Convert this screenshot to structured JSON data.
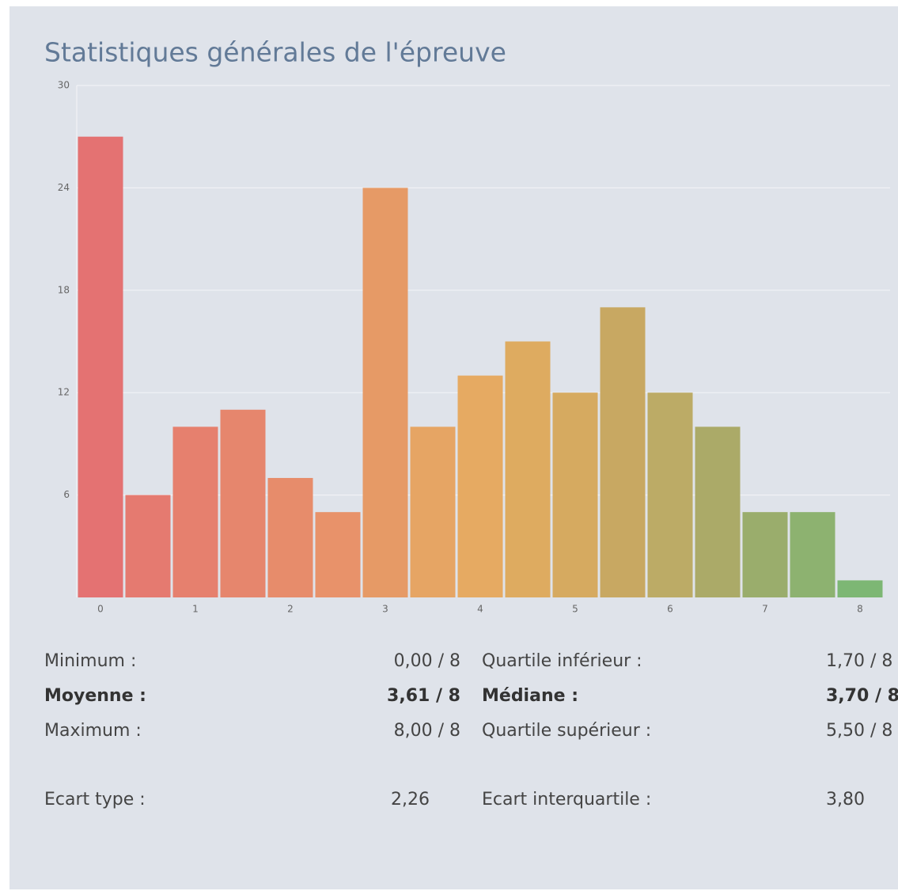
{
  "chart_data": {
    "type": "histogram",
    "title": "Statistiques générales de l'épreuve",
    "bins": [
      -0.25,
      0.25,
      0.75,
      1.25,
      1.75,
      2.25,
      2.75,
      3.25,
      3.75,
      4.25,
      4.75,
      5.25,
      5.75,
      6.25,
      6.75,
      7.25,
      7.75,
      8.25
    ],
    "values": [
      27,
      6,
      10,
      11,
      7,
      5,
      24,
      10,
      13,
      15,
      12,
      17,
      12,
      10,
      5,
      5,
      1
    ],
    "colors": [
      "#e47272",
      "#e57a70",
      "#e6806e",
      "#e6866d",
      "#e78c6b",
      "#e8926a",
      "#e69a66",
      "#e6a564",
      "#e6aa62",
      "#deab60",
      "#d6aa60",
      "#c8a862",
      "#bcab66",
      "#abaa68",
      "#9aad6c",
      "#8db270",
      "#7db774"
    ],
    "xlim": [
      -0.25,
      8.25
    ],
    "ylim": [
      0,
      30
    ],
    "xticks": [
      0,
      1,
      2,
      3,
      4,
      5,
      6,
      7,
      8
    ],
    "yticks": [
      6,
      12,
      18,
      24,
      30
    ],
    "grid": true
  },
  "stats": {
    "rows": [
      [
        "Minimum :",
        "0,00 / 8",
        "Quartile inférieur :",
        "1,70 / 8"
      ],
      [
        "Moyenne :",
        "3,61 / 8",
        "Médiane :",
        "3,70 / 8"
      ],
      [
        "Maximum :",
        "8,00 / 8",
        "Quartile supérieur :",
        "5,50 / 8"
      ],
      [
        "Ecart type :",
        "2,26",
        "Ecart interquartile :",
        "3,80"
      ]
    ]
  }
}
